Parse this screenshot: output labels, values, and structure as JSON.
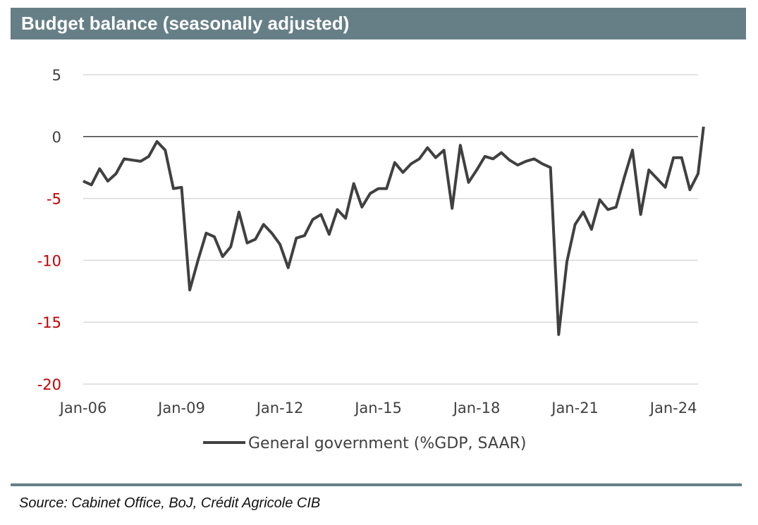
{
  "header": {
    "title": "Budget balance (seasonally adjusted)"
  },
  "footer": {
    "source": "Source: Cabinet Office, BoJ, Crédit Agricole CIB"
  },
  "colors": {
    "header_bg": "#667f87",
    "line": "#404040",
    "negative_tick": "#c00000",
    "grid": "#d9d9d9"
  },
  "chart_data": {
    "type": "line",
    "title": "",
    "xlabel": "",
    "ylabel": "",
    "ylim": [
      -20,
      5
    ],
    "yticks": [
      5,
      0,
      -5,
      -10,
      -15,
      -20
    ],
    "ytick_labels": [
      "5",
      "0",
      "-5",
      "-10",
      "-15",
      "-20"
    ],
    "xlim": [
      "2006-01",
      "2024-10"
    ],
    "xticks": [
      "2006-01",
      "2009-01",
      "2012-01",
      "2015-01",
      "2018-01",
      "2021-01",
      "2024-01"
    ],
    "xtick_labels": [
      "Jan-06",
      "Jan-09",
      "Jan-12",
      "Jan-15",
      "Jan-18",
      "Jan-21",
      "Jan-24"
    ],
    "grid": true,
    "legend": "bottom",
    "series": [
      {
        "name": "General government (%GDP, SAAR)",
        "x": [
          "2006-01",
          "2006-04",
          "2006-07",
          "2006-10",
          "2007-01",
          "2007-04",
          "2007-07",
          "2007-10",
          "2008-01",
          "2008-04",
          "2008-07",
          "2008-10",
          "2009-01",
          "2009-04",
          "2009-07",
          "2009-10",
          "2010-01",
          "2010-04",
          "2010-07",
          "2010-10",
          "2011-01",
          "2011-04",
          "2011-07",
          "2011-10",
          "2012-01",
          "2012-04",
          "2012-07",
          "2012-10",
          "2013-01",
          "2013-04",
          "2013-07",
          "2013-10",
          "2014-01",
          "2014-04",
          "2014-07",
          "2014-10",
          "2015-01",
          "2015-04",
          "2015-07",
          "2015-10",
          "2016-01",
          "2016-04",
          "2016-07",
          "2016-10",
          "2017-01",
          "2017-04",
          "2017-07",
          "2017-10",
          "2018-01",
          "2018-04",
          "2018-07",
          "2018-10",
          "2019-01",
          "2019-04",
          "2019-07",
          "2019-10",
          "2020-01",
          "2020-04",
          "2020-07",
          "2020-10",
          "2021-01",
          "2021-04",
          "2021-07",
          "2021-10",
          "2022-01",
          "2022-04",
          "2022-07",
          "2022-10",
          "2023-01",
          "2023-04",
          "2023-07",
          "2023-10",
          "2024-01",
          "2024-04",
          "2024-07",
          "2024-10"
        ],
        "values": [
          -3.6,
          -3.9,
          -2.6,
          -3.6,
          -3.0,
          -1.8,
          -1.9,
          -2.0,
          -1.6,
          -0.4,
          -1.1,
          -4.2,
          -4.1,
          -12.4,
          -10.0,
          -7.8,
          -8.1,
          -9.7,
          -8.9,
          -6.1,
          -8.6,
          -8.3,
          -7.1,
          -7.8,
          -8.7,
          -10.6,
          -8.2,
          -8.0,
          -6.7,
          -6.3,
          -7.9,
          -5.9,
          -6.6,
          -3.8,
          -5.7,
          -4.6,
          -4.2,
          -4.2,
          -2.1,
          -2.9,
          -2.2,
          -1.8,
          -0.9,
          -1.7,
          -1.1,
          -5.8,
          -0.7,
          -3.7,
          -2.7,
          -1.6,
          -1.8,
          -1.3,
          -1.9,
          -2.3,
          -2.0,
          -1.8,
          -2.2,
          -2.5,
          -16.0,
          -10.1,
          -7.1,
          -6.1,
          -7.5,
          -5.1,
          -5.9,
          -5.7,
          -3.3,
          -1.1,
          -6.3,
          -2.7,
          -3.4,
          -4.1,
          -1.7,
          -1.7,
          -4.3,
          -3.0
        ]
      },
      {
        "name": "",
        "note_hidden": false,
        "x": [
          "2024-10",
          "2024-12"
        ],
        "values": [
          -3.0,
          0.8
        ]
      }
    ]
  }
}
